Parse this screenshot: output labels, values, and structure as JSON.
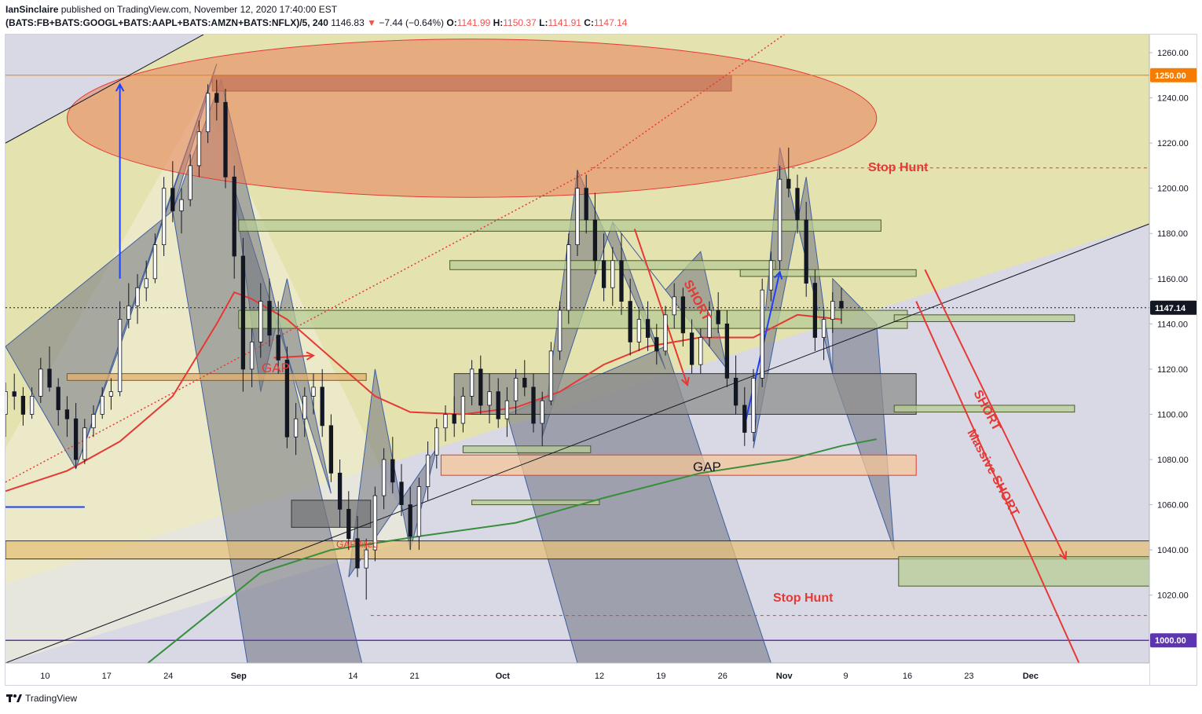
{
  "header": {
    "author": "IanSinclaire",
    "published": "published on TradingView.com, November 12, 2020 17:40:00 EST",
    "symbol": "(BATS:FB+BATS:GOOGL+BATS:AAPL+BATS:AMZN+BATS:NFLX)/5, 240",
    "last": "1146.83",
    "change": "−7.44 (−0.64%)",
    "o_label": "O:",
    "o_val": "1141.99",
    "h_label": "H:",
    "h_val": "1150.37",
    "l_label": "L:",
    "l_val": "1141.91",
    "c_label": "C:",
    "c_val": "1147.14"
  },
  "footer": {
    "brand": "TradingView"
  },
  "colors": {
    "up": "#ffffff",
    "down": "#131722",
    "ema": "#e53935",
    "sma200": "#388e3c",
    "note": "#e53935",
    "level1000": "#5e35b1",
    "level1250": "#f57c00",
    "channel": "#e6e2a8"
  },
  "chart_data": {
    "type": "candlestick",
    "yaxis": {
      "ticks": [
        1260,
        1240,
        1220,
        1200,
        1180,
        1160,
        1140,
        1120,
        1100,
        1080,
        1060,
        1040,
        1020
      ],
      "tick_labels": [
        "1260.00",
        "1240.00",
        "1220.00",
        "1200.00",
        "1180.00",
        "1160.00",
        "1140.00",
        "1120.00",
        "1100.00",
        "1080.00",
        "1060.00",
        "1040.00",
        "1020.00"
      ],
      "ylim": [
        990,
        1268
      ]
    },
    "xaxis": {
      "tick_labels": [
        "10",
        "17",
        "24",
        "Sep",
        "14",
        "21",
        "Oct",
        "12",
        "19",
        "26",
        "Nov",
        "9",
        "16",
        "23",
        "Dec"
      ],
      "tick_days": [
        10,
        17,
        24,
        32,
        45,
        52,
        62,
        73,
        80,
        87,
        94,
        101,
        108,
        115,
        122
      ],
      "xlim": [
        5.5,
        135.5
      ]
    },
    "price_labels": [
      {
        "value": 1250,
        "text": "1250.00",
        "style": "orange"
      },
      {
        "value": 1147.14,
        "text": "1147.14",
        "style": "dark"
      },
      {
        "value": 1000,
        "text": "1000.00",
        "style": "purple"
      }
    ],
    "candles": [
      [
        5.5,
        1100,
        1114,
        1090,
        1110
      ],
      [
        6.5,
        1110,
        1118,
        1102,
        1108
      ],
      [
        7.5,
        1108,
        1112,
        1095,
        1100
      ],
      [
        8.5,
        1100,
        1112,
        1098,
        1108
      ],
      [
        9.5,
        1108,
        1125,
        1105,
        1120
      ],
      [
        10.5,
        1120,
        1130,
        1110,
        1112
      ],
      [
        11.5,
        1112,
        1116,
        1095,
        1102
      ],
      [
        12.5,
        1102,
        1108,
        1090,
        1098
      ],
      [
        13.5,
        1098,
        1105,
        1076,
        1080
      ],
      [
        14.5,
        1080,
        1098,
        1078,
        1094
      ],
      [
        15.5,
        1094,
        1104,
        1090,
        1100
      ],
      [
        16.5,
        1100,
        1112,
        1098,
        1108
      ],
      [
        17.5,
        1108,
        1116,
        1102,
        1110
      ],
      [
        18.5,
        1110,
        1150,
        1108,
        1142
      ],
      [
        19.5,
        1142,
        1158,
        1138,
        1148
      ],
      [
        20.5,
        1148,
        1162,
        1140,
        1156
      ],
      [
        21.5,
        1156,
        1168,
        1150,
        1160
      ],
      [
        22.5,
        1160,
        1180,
        1158,
        1175
      ],
      [
        23.5,
        1175,
        1205,
        1170,
        1200
      ],
      [
        24.5,
        1200,
        1212,
        1185,
        1190
      ],
      [
        25.5,
        1190,
        1200,
        1180,
        1195
      ],
      [
        26.5,
        1195,
        1215,
        1192,
        1210
      ],
      [
        27.5,
        1210,
        1230,
        1205,
        1225
      ],
      [
        28.5,
        1225,
        1246,
        1220,
        1242
      ],
      [
        29.5,
        1242,
        1248,
        1230,
        1238
      ],
      [
        30.5,
        1238,
        1244,
        1200,
        1205
      ],
      [
        31.5,
        1205,
        1210,
        1160,
        1170
      ],
      [
        32.5,
        1170,
        1178,
        1110,
        1120
      ],
      [
        33.5,
        1120,
        1138,
        1112,
        1132
      ],
      [
        34.5,
        1132,
        1158,
        1125,
        1150
      ],
      [
        35.5,
        1150,
        1160,
        1130,
        1135
      ],
      [
        36.5,
        1135,
        1150,
        1118,
        1124
      ],
      [
        37.5,
        1124,
        1130,
        1085,
        1090
      ],
      [
        38.5,
        1090,
        1105,
        1082,
        1098
      ],
      [
        39.5,
        1098,
        1112,
        1090,
        1108
      ],
      [
        40.5,
        1108,
        1118,
        1100,
        1112
      ],
      [
        41.5,
        1112,
        1120,
        1090,
        1095
      ],
      [
        42.5,
        1095,
        1100,
        1070,
        1074
      ],
      [
        43.5,
        1074,
        1080,
        1050,
        1058
      ],
      [
        44.5,
        1058,
        1066,
        1040,
        1045
      ],
      [
        45.5,
        1045,
        1055,
        1028,
        1032
      ],
      [
        46.5,
        1032,
        1045,
        1018,
        1040
      ],
      [
        47.5,
        1040,
        1068,
        1035,
        1064
      ],
      [
        48.5,
        1064,
        1085,
        1058,
        1080
      ],
      [
        49.5,
        1080,
        1090,
        1065,
        1070
      ],
      [
        50.5,
        1070,
        1078,
        1055,
        1060
      ],
      [
        51.5,
        1060,
        1068,
        1040,
        1046
      ],
      [
        52.5,
        1046,
        1072,
        1040,
        1068
      ],
      [
        53.5,
        1068,
        1088,
        1062,
        1082
      ],
      [
        54.5,
        1082,
        1098,
        1076,
        1094
      ],
      [
        55.5,
        1094,
        1104,
        1088,
        1100
      ],
      [
        56.5,
        1100,
        1108,
        1090,
        1096
      ],
      [
        57.5,
        1096,
        1112,
        1092,
        1108
      ],
      [
        58.5,
        1108,
        1124,
        1104,
        1120
      ],
      [
        59.5,
        1120,
        1126,
        1100,
        1104
      ],
      [
        60.5,
        1104,
        1118,
        1096,
        1110
      ],
      [
        61.5,
        1110,
        1116,
        1094,
        1098
      ],
      [
        62.5,
        1098,
        1112,
        1090,
        1106
      ],
      [
        63.5,
        1106,
        1120,
        1100,
        1116
      ],
      [
        64.5,
        1116,
        1124,
        1108,
        1112
      ],
      [
        65.5,
        1112,
        1118,
        1092,
        1096
      ],
      [
        66.5,
        1096,
        1110,
        1086,
        1106
      ],
      [
        67.5,
        1106,
        1132,
        1104,
        1128
      ],
      [
        68.5,
        1128,
        1150,
        1124,
        1146
      ],
      [
        69.5,
        1146,
        1180,
        1140,
        1175
      ],
      [
        70.5,
        1175,
        1208,
        1170,
        1200
      ],
      [
        71.5,
        1200,
        1206,
        1180,
        1186
      ],
      [
        72.5,
        1186,
        1198,
        1162,
        1168
      ],
      [
        73.5,
        1168,
        1180,
        1150,
        1156
      ],
      [
        74.5,
        1156,
        1174,
        1148,
        1168
      ],
      [
        75.5,
        1168,
        1180,
        1144,
        1150
      ],
      [
        76.5,
        1150,
        1160,
        1126,
        1132
      ],
      [
        77.5,
        1132,
        1146,
        1128,
        1142
      ],
      [
        78.5,
        1142,
        1150,
        1128,
        1134
      ],
      [
        79.5,
        1134,
        1140,
        1122,
        1128
      ],
      [
        80.5,
        1128,
        1148,
        1126,
        1144
      ],
      [
        81.5,
        1144,
        1158,
        1138,
        1152
      ],
      [
        82.5,
        1152,
        1156,
        1130,
        1136
      ],
      [
        83.5,
        1136,
        1142,
        1118,
        1122
      ],
      [
        84.5,
        1122,
        1138,
        1118,
        1134
      ],
      [
        85.5,
        1134,
        1150,
        1130,
        1146
      ],
      [
        86.5,
        1146,
        1154,
        1136,
        1140
      ],
      [
        87.5,
        1140,
        1146,
        1112,
        1116
      ],
      [
        88.5,
        1116,
        1126,
        1100,
        1104
      ],
      [
        89.5,
        1104,
        1112,
        1086,
        1092
      ],
      [
        90.5,
        1092,
        1120,
        1088,
        1116
      ],
      [
        91.5,
        1116,
        1160,
        1112,
        1155
      ],
      [
        92.5,
        1155,
        1172,
        1150,
        1168
      ],
      [
        93.5,
        1168,
        1210,
        1164,
        1204
      ],
      [
        94.5,
        1204,
        1218,
        1196,
        1200
      ],
      [
        95.5,
        1200,
        1206,
        1180,
        1186
      ],
      [
        96.5,
        1186,
        1194,
        1152,
        1158
      ],
      [
        97.5,
        1158,
        1164,
        1128,
        1134
      ],
      [
        98.5,
        1134,
        1146,
        1124,
        1142
      ],
      [
        99.5,
        1142,
        1154,
        1136,
        1150
      ],
      [
        100.5,
        1150,
        1156,
        1140,
        1147
      ]
    ],
    "ema_line": [
      [
        5.5,
        1066
      ],
      [
        12.5,
        1075
      ],
      [
        18.5,
        1088
      ],
      [
        24.5,
        1108
      ],
      [
        29.5,
        1140
      ],
      [
        31.5,
        1154
      ],
      [
        33.5,
        1151
      ],
      [
        37.5,
        1142
      ],
      [
        42.5,
        1125
      ],
      [
        47.5,
        1108
      ],
      [
        51.5,
        1101
      ],
      [
        57.5,
        1100
      ],
      [
        63.5,
        1103
      ],
      [
        68.5,
        1110
      ],
      [
        73.5,
        1122
      ],
      [
        78.5,
        1130
      ],
      [
        84.5,
        1134
      ],
      [
        90.5,
        1134
      ],
      [
        95.5,
        1144
      ],
      [
        100.5,
        1142
      ]
    ],
    "sma200_line": [
      [
        18.5,
        980
      ],
      [
        26.5,
        1005
      ],
      [
        34.5,
        1030
      ],
      [
        42.5,
        1040
      ],
      [
        52.5,
        1046
      ],
      [
        63.5,
        1052
      ],
      [
        73.5,
        1063
      ],
      [
        84.5,
        1074
      ],
      [
        94.5,
        1080
      ],
      [
        100.5,
        1086
      ],
      [
        104.5,
        1089
      ]
    ],
    "annotations": {
      "gap_left": "GAP",
      "gap_filled": "GAP filled",
      "gap_bottom": "GAP",
      "stop_hunt_top": "Stop Hunt",
      "stop_hunt_bottom": "Stop Hunt",
      "short_mid": "SHORT",
      "short_right": "SHORT",
      "massive_short": "Massive SHORT"
    }
  }
}
